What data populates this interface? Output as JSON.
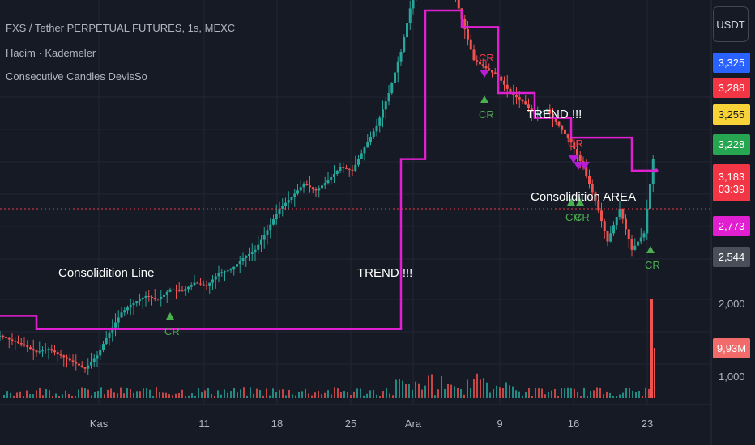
{
  "legend": {
    "title": "FXS / Tether PERPETUAL FUTURES, 1s, MEXC",
    "indicator1": "Hacim · Kademeler",
    "indicator2": "Consecutive Candles DevisSo"
  },
  "currency_button": "USDT",
  "price_tags": [
    {
      "label": "3,325",
      "bg": "#2962ff",
      "fg": "#ffffff"
    },
    {
      "label": "3,288",
      "bg": "#f23645",
      "fg": "#ffffff"
    },
    {
      "label": "3,255",
      "bg": "#f7d338",
      "fg": "#131722"
    },
    {
      "label": "3,228",
      "bg": "#26a650",
      "fg": "#ffffff"
    },
    {
      "label": "3,183",
      "sublabel": "03:39",
      "bg": "#f23645",
      "fg": "#ffffff"
    },
    {
      "label": "2,773",
      "bg": "#e020d0",
      "fg": "#ffffff"
    },
    {
      "label": "2,544",
      "bg": "#4a4e59",
      "fg": "#ffffff"
    },
    {
      "label": "9,93M",
      "bg": "#f26b6b",
      "fg": "#ffffff"
    }
  ],
  "axis_labels": {
    "price_2000": "2,000",
    "volume_1000": "1,000"
  },
  "annotations": {
    "consolidation_line": "Consolidition Line",
    "trend_1": "TREND  !!!",
    "trend_2": "TREND  !!!",
    "consolidation_area": "Consolidition AREA",
    "cr": "CR"
  },
  "chart_data": {
    "type": "line",
    "title": "FXS / Tether PERPETUAL FUTURES, 1s, MEXC",
    "xlabel": "",
    "ylabel": "",
    "x_tick_labels": [
      "Kas",
      "11",
      "18",
      "25",
      "Ara",
      "9",
      "16",
      "23"
    ],
    "y_tick_labels": [
      "2,000"
    ],
    "series": [
      {
        "name": "price",
        "color": "#26a69a",
        "x": [
          0,
          1,
          2,
          3,
          4,
          5,
          6,
          7,
          8,
          9,
          10,
          11,
          12,
          13,
          14,
          15,
          16,
          17,
          18,
          19,
          20,
          21,
          22,
          23,
          24,
          25,
          26,
          27,
          28,
          29,
          30,
          31,
          32,
          33,
          34,
          35,
          36,
          37,
          38,
          39,
          40,
          41,
          42,
          43,
          44,
          45,
          46,
          47,
          48,
          49,
          50,
          51,
          52,
          53,
          54
        ],
        "values": [
          1.78,
          1.75,
          1.72,
          1.68,
          1.7,
          1.66,
          1.62,
          1.58,
          1.66,
          1.8,
          1.92,
          1.98,
          2.02,
          2.0,
          2.06,
          2.05,
          2.1,
          2.08,
          2.16,
          2.18,
          2.25,
          2.3,
          2.42,
          2.55,
          2.62,
          2.7,
          2.66,
          2.72,
          2.8,
          2.78,
          2.92,
          3.05,
          3.25,
          3.5,
          3.85,
          4.05,
          3.9,
          3.95,
          3.7,
          3.45,
          3.4,
          3.35,
          3.25,
          3.2,
          3.12,
          3.15,
          3.05,
          2.95,
          2.8,
          2.6,
          2.35,
          2.55,
          2.3,
          2.4,
          3.0
        ]
      },
      {
        "name": "consolidation_line",
        "color": "#e020d0",
        "x": [
          0,
          3,
          3,
          11,
          11,
          33,
          33,
          35,
          35,
          38,
          38,
          41,
          41,
          44,
          44,
          47,
          47,
          52,
          52,
          54
        ],
        "values": [
          1.9,
          1.9,
          1.82,
          1.82,
          1.82,
          1.82,
          2.85,
          2.85,
          3.75,
          3.75,
          3.65,
          3.65,
          3.25,
          3.25,
          3.1,
          3.1,
          2.98,
          2.98,
          2.78,
          2.78
        ]
      }
    ]
  }
}
